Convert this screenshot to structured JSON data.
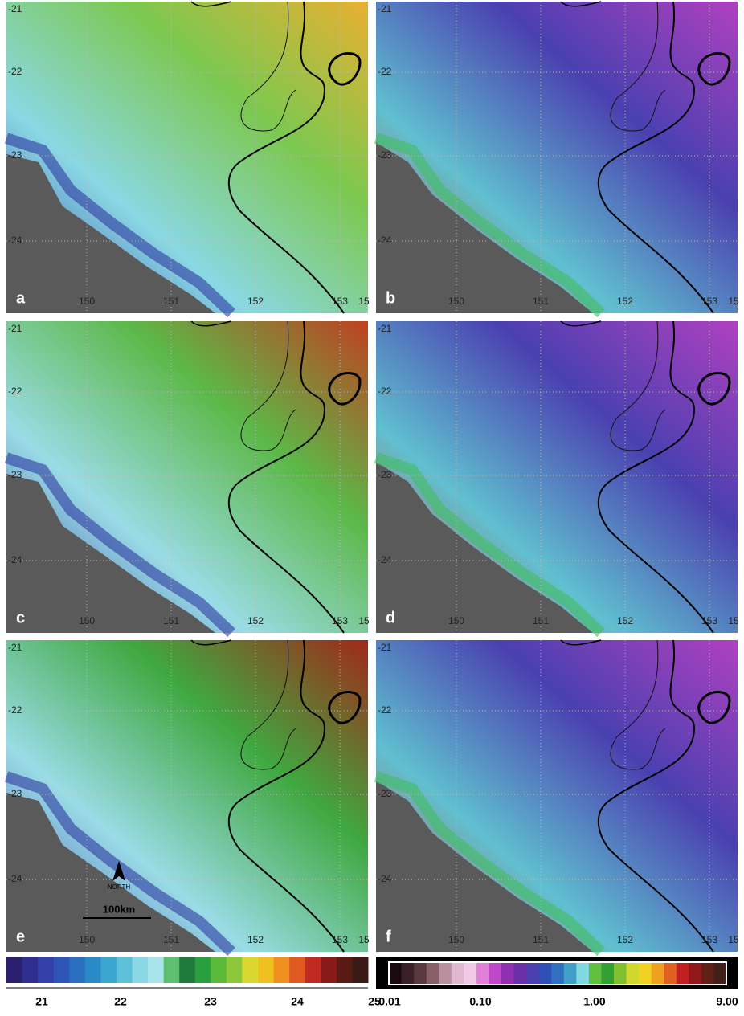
{
  "panels": [
    {
      "label": "a"
    },
    {
      "label": "b"
    },
    {
      "label": "c"
    },
    {
      "label": "d"
    },
    {
      "label": "e"
    },
    {
      "label": "f"
    }
  ],
  "axes": {
    "lat_labels": [
      "-21",
      "-22",
      "-23",
      "-24"
    ],
    "lon_labels": [
      "150",
      "151",
      "152",
      "153",
      "15"
    ]
  },
  "north_arrow": "NORTH",
  "scale_bar": "100km",
  "colorbars": [
    {
      "colors": [
        "#2b2070",
        "#2e2f8f",
        "#3340a8",
        "#2f55b8",
        "#2a6ec0",
        "#2a8ac8",
        "#3aa6d0",
        "#5cc0d8",
        "#8ad8e4",
        "#a8e4ec",
        "#5cc070",
        "#1e7a3a",
        "#28a040",
        "#5cba3a",
        "#8cc83a",
        "#d8d830",
        "#f0c020",
        "#f09020",
        "#e05a20",
        "#c02a20",
        "#8a1a18",
        "#5a1a14",
        "#3a1a14"
      ],
      "labels": [
        "21",
        "22",
        "23",
        "24",
        "25"
      ]
    },
    {
      "colors": [
        "#1a0a10",
        "#3a2028",
        "#5a3a40",
        "#8a6068",
        "#b890a0",
        "#e0b8d0",
        "#f0c8e8",
        "#e080d8",
        "#c048c8",
        "#9030b0",
        "#6a30a8",
        "#4a40b0",
        "#3050b8",
        "#3070c0",
        "#40a0c8",
        "#80d8e0",
        "#60c040",
        "#30a030",
        "#80c030",
        "#d0d830",
        "#f0d020",
        "#f0a020",
        "#e06020",
        "#c02020",
        "#901818",
        "#602018",
        "#402018"
      ],
      "labels": [
        "0.01",
        "0.10",
        "1.00",
        "9.00"
      ]
    }
  ]
}
